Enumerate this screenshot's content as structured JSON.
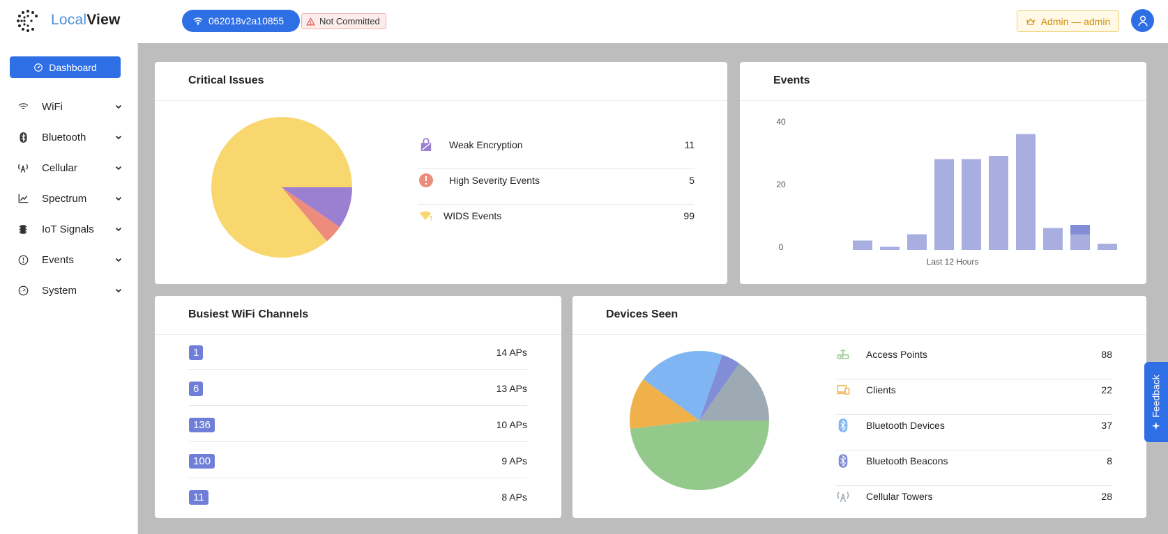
{
  "app": {
    "logo_part1": "Local",
    "logo_part2": "View"
  },
  "header": {
    "device_id": "062018v2a10855",
    "commit_status": "Not Committed",
    "user_label": "Admin — admin",
    "accent": "#2f6fe6"
  },
  "sidebar": {
    "dashboard_label": "Dashboard",
    "items": [
      {
        "label": "WiFi",
        "icon": "wifi-icon"
      },
      {
        "label": "Bluetooth",
        "icon": "bluetooth-icon"
      },
      {
        "label": "Cellular",
        "icon": "cellular-icon"
      },
      {
        "label": "Spectrum",
        "icon": "spectrum-icon"
      },
      {
        "label": "IoT Signals",
        "icon": "chip-icon"
      },
      {
        "label": "Events",
        "icon": "alert-icon"
      },
      {
        "label": "System",
        "icon": "gauge-icon"
      }
    ]
  },
  "critical": {
    "title": "Critical Issues",
    "rows": [
      {
        "label": "Weak Encryption",
        "value": "11",
        "color": "#9b7fd0"
      },
      {
        "label": "High Severity Events",
        "value": "5",
        "color": "#ee8c7c"
      },
      {
        "label": "WIDS Events",
        "value": "99",
        "color": "#f9d76f"
      }
    ]
  },
  "events": {
    "title": "Events",
    "xlabel": "Last 12 Hours",
    "ticks": [
      "40",
      "20",
      "0"
    ]
  },
  "channels": {
    "title": "Busiest WiFi Channels",
    "rows": [
      {
        "channel": "1",
        "count": "14 APs"
      },
      {
        "channel": "6",
        "count": "13 APs"
      },
      {
        "channel": "136",
        "count": "10 APs"
      },
      {
        "channel": "100",
        "count": "9 APs"
      },
      {
        "channel": "11",
        "count": "8 APs"
      }
    ]
  },
  "devices": {
    "title": "Devices Seen",
    "rows": [
      {
        "label": "Access Points",
        "value": "88",
        "icon": "router-icon",
        "color": "#93c98b"
      },
      {
        "label": "Clients",
        "value": "22",
        "icon": "devices-icon",
        "color": "#f0b14b"
      },
      {
        "label": "Bluetooth Devices",
        "value": "37",
        "icon": "bluetooth-icon",
        "color": "#7fb5f2"
      },
      {
        "label": "Bluetooth Beacons",
        "value": "8",
        "icon": "bluetooth-icon",
        "color": "#818dd6"
      },
      {
        "label": "Cellular Towers",
        "value": "28",
        "icon": "cellular-icon",
        "color": "#9eaab3"
      }
    ]
  },
  "feedback_label": "Feedback",
  "chart_data": [
    {
      "type": "pie",
      "labels": [
        "Weak Encryption",
        "High Severity Events",
        "WIDS Events"
      ],
      "values": [
        11,
        5,
        99
      ],
      "colors": [
        "#9b7fd0",
        "#ee8c7c",
        "#f9d76f"
      ]
    },
    {
      "type": "bar",
      "xlabel": "Last 12 Hours",
      "ylim": [
        0,
        40
      ],
      "yticks": [
        0,
        20,
        40
      ],
      "series": [
        {
          "values": [
            3,
            1,
            5,
            29,
            29,
            30,
            37,
            7,
            5,
            2
          ],
          "color": "#a8aee0"
        },
        {
          "values": [
            0,
            0,
            0,
            0,
            0,
            0,
            0,
            0,
            3,
            0
          ],
          "color": "#818dd6"
        }
      ],
      "categories": [
        "1",
        "2",
        "3",
        "4",
        "5",
        "6",
        "7",
        "8",
        "9",
        "10"
      ]
    },
    {
      "type": "pie",
      "labels": [
        "Access Points",
        "Clients",
        "Bluetooth Devices",
        "Bluetooth Beacons",
        "Cellular Towers"
      ],
      "values": [
        88,
        22,
        37,
        8,
        28
      ],
      "colors": [
        "#93c98b",
        "#f0b14b",
        "#7fb5f2",
        "#818dd6",
        "#9eaab3"
      ]
    }
  ]
}
